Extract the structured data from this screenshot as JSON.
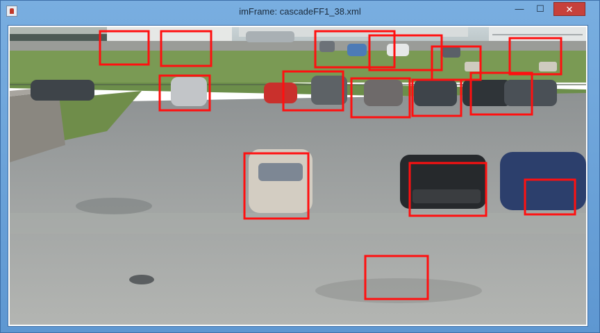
{
  "window": {
    "title": "imFrame: cascadeFF1_38.xml",
    "controls": {
      "minimize": "—",
      "maximize": "☐",
      "close": "✕"
    }
  },
  "image": {
    "description_name": "parking-lot-camera-frame",
    "detection_box_color": "#ff1010",
    "detection_count": 18
  }
}
